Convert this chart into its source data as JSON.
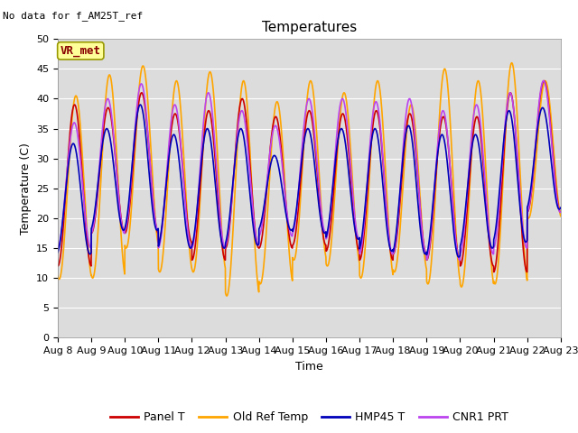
{
  "title": "Temperatures",
  "xlabel": "Time",
  "ylabel": "Temperature (C)",
  "subtitle": "No data for f_AM25T_ref",
  "legend_label": "VR_met",
  "ylim": [
    0,
    50
  ],
  "series": {
    "panel_t": {
      "color": "#CC0000",
      "label": "Panel T",
      "lw": 1.2
    },
    "old_ref": {
      "color": "#FFA500",
      "label": "Old Ref Temp",
      "lw": 1.2
    },
    "hmp45": {
      "color": "#0000BB",
      "label": "HMP45 T",
      "lw": 1.2
    },
    "cnr1": {
      "color": "#BB44EE",
      "label": "CNR1 PRT",
      "lw": 1.2
    }
  },
  "tick_labels": [
    "Aug 8",
    "Aug 9",
    "Aug 10",
    "Aug 11",
    "Aug 12",
    "Aug 13",
    "Aug 14",
    "Aug 15",
    "Aug 16",
    "Aug 17",
    "Aug 18",
    "Aug 19",
    "Aug 20",
    "Aug 21",
    "Aug 22",
    "Aug 23"
  ],
  "bg_color": "#DCDCDC",
  "fig_bg": "#FFFFFF",
  "vr_met_box_color": "#FFFF99",
  "vr_met_text_color": "#880000",
  "grid_color": "#FFFFFF",
  "title_fontsize": 11,
  "label_fontsize": 9,
  "tick_fontsize": 8,
  "legend_fontsize": 9,
  "day_maxes_orange": [
    40.5,
    44.0,
    45.5,
    43.0,
    44.5,
    43.0,
    39.5,
    43.0,
    41.0,
    43.0,
    39.0,
    45.0,
    43.0,
    46.0,
    43.0
  ],
  "day_mins_orange": [
    9.8,
    10.0,
    15.0,
    11.0,
    11.0,
    7.0,
    9.0,
    13.0,
    12.0,
    10.0,
    11.0,
    9.0,
    8.5,
    9.0,
    20.0
  ],
  "day_maxes_red": [
    39.0,
    38.5,
    41.0,
    37.5,
    38.0,
    40.0,
    37.0,
    38.0,
    37.5,
    38.0,
    37.5,
    37.0,
    37.0,
    41.0,
    43.0
  ],
  "day_mins_red": [
    12.0,
    17.5,
    17.5,
    16.0,
    13.0,
    15.0,
    15.0,
    15.5,
    14.5,
    13.0,
    14.0,
    13.0,
    12.0,
    11.0,
    21.0
  ],
  "day_maxes_blue": [
    32.5,
    35.0,
    39.0,
    34.0,
    35.0,
    35.0,
    30.5,
    35.0,
    35.0,
    35.0,
    35.5,
    34.0,
    34.0,
    38.0,
    38.5
  ],
  "day_mins_blue": [
    14.0,
    18.0,
    18.0,
    15.0,
    15.0,
    15.5,
    18.0,
    17.5,
    16.5,
    14.5,
    14.0,
    13.5,
    15.0,
    16.0,
    21.5
  ],
  "day_maxes_purple": [
    36.0,
    40.0,
    42.5,
    39.0,
    41.0,
    38.0,
    35.5,
    40.0,
    40.0,
    39.5,
    40.0,
    38.0,
    39.0,
    41.0,
    43.0
  ],
  "day_mins_purple": [
    15.0,
    17.5,
    18.0,
    15.0,
    15.0,
    15.5,
    17.0,
    17.5,
    16.5,
    14.0,
    14.0,
    13.0,
    14.0,
    15.0,
    21.0
  ]
}
